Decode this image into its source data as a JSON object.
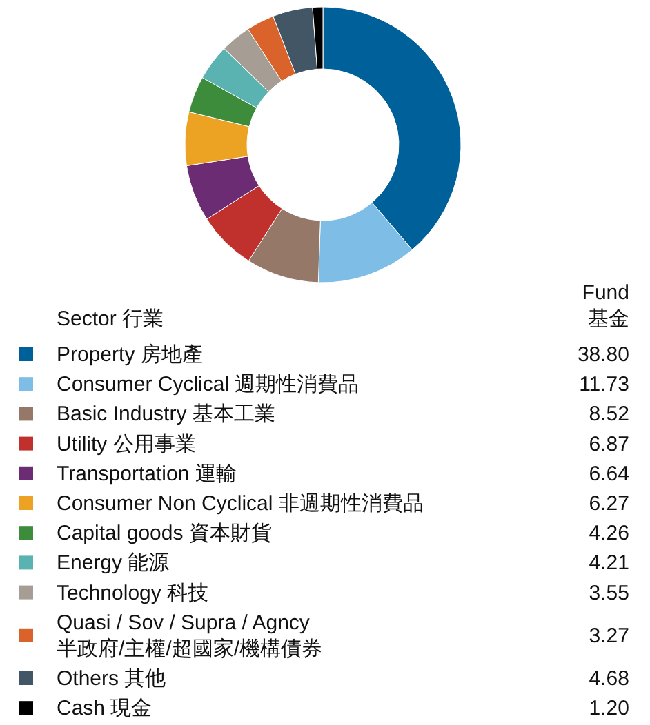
{
  "chart_data": {
    "type": "donut",
    "categories": [
      "Property 房地產",
      "Consumer Cyclical 週期性消費品",
      "Basic Industry 基本工業",
      "Utility 公用事業",
      "Transportation 運輸",
      "Consumer Non Cyclical 非週期性消費品",
      "Capital goods 資本財貨",
      "Energy 能源",
      "Technology 科技",
      "Quasi / Sov / Supra / Agncy\n半政府/主權/超國家/機構債券",
      "Others 其他",
      "Cash 現金"
    ],
    "values": [
      38.8,
      11.73,
      8.52,
      6.87,
      6.64,
      6.27,
      4.26,
      4.21,
      3.55,
      3.27,
      4.68,
      1.2
    ],
    "value_labels": [
      "38.80",
      "11.73",
      "8.52",
      "6.87",
      "6.64",
      "6.27",
      "4.26",
      "4.21",
      "3.55",
      "3.27",
      "4.68",
      "1.20"
    ],
    "colors": [
      "#00609a",
      "#7dbde6",
      "#957868",
      "#c0302d",
      "#6b2c74",
      "#eca222",
      "#3c8c3c",
      "#5ab3b0",
      "#a69d95",
      "#d9632a",
      "#435666",
      "#000000"
    ],
    "legend_title": "Sector 行業",
    "annotations": [
      "Fund\n基金"
    ],
    "legend": "bottom"
  }
}
